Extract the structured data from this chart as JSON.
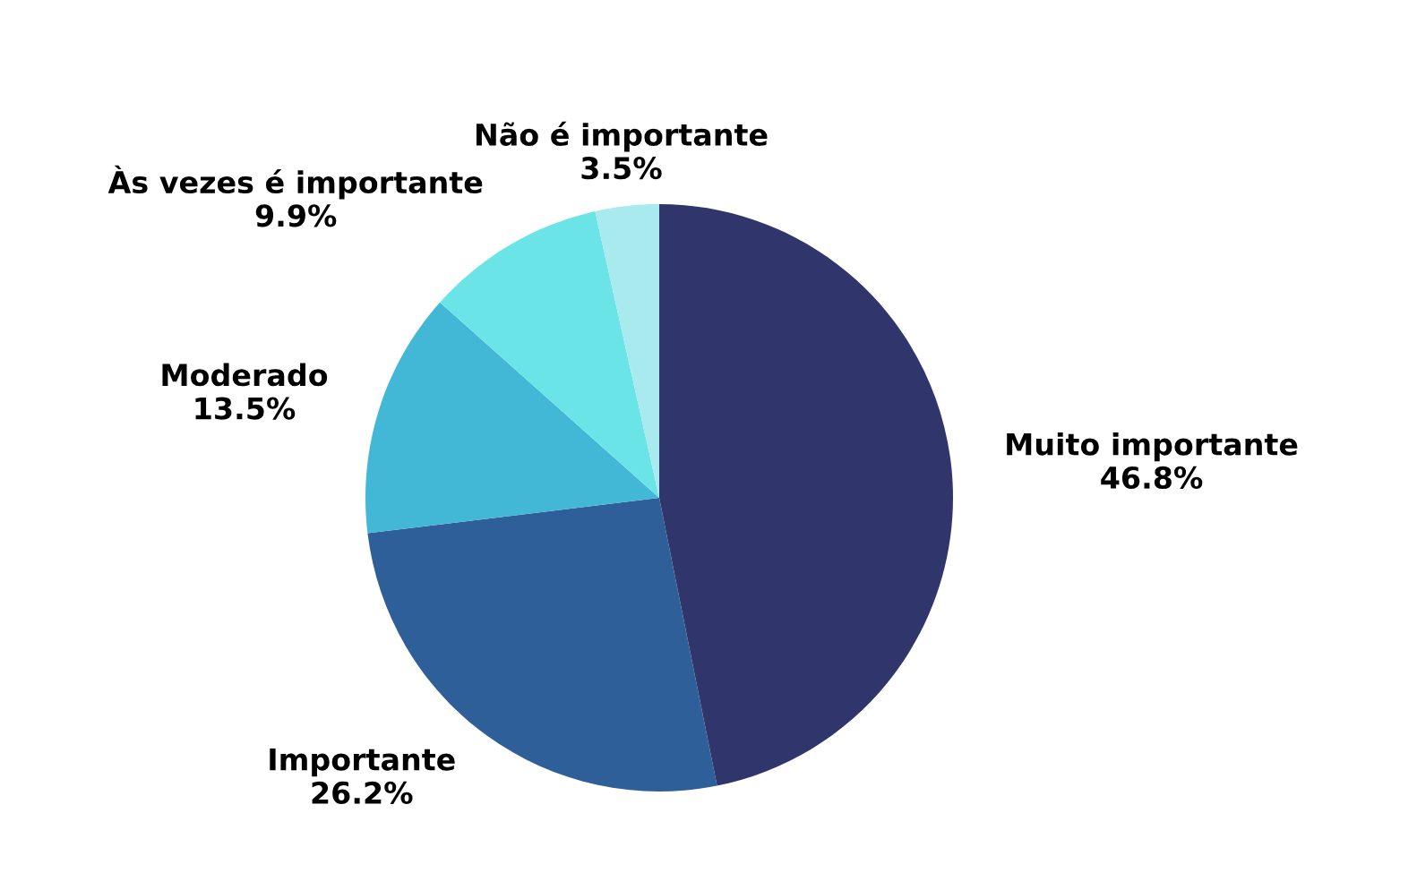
{
  "chart_data": {
    "type": "pie",
    "categories": [
      "Muito importante",
      "Importante",
      "Moderado",
      "Às vezes é importante",
      "Não é importante"
    ],
    "values": [
      46.8,
      26.2,
      13.5,
      9.9,
      3.5
    ],
    "value_labels": [
      "46.8%",
      "26.2%",
      "13.5%",
      "9.9%",
      "3.5%"
    ],
    "colors": [
      "#30356b",
      "#2e5f98",
      "#42b8d6",
      "#6be4e8",
      "#a8eaee"
    ],
    "legend": false
  }
}
